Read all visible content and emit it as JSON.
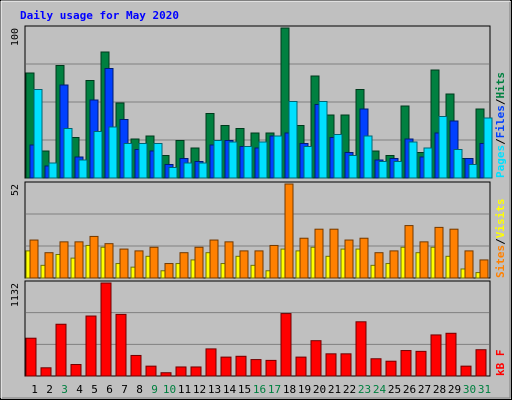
{
  "title": "Daily usage for May 2020",
  "colors": {
    "background": "#c0c0c0",
    "hits": "#008040",
    "files": "#0040ff",
    "pages": "#00e0ff",
    "visits": "#ffff00",
    "sites": "#ff8000",
    "kbytes": "#ff0000",
    "title": "#0000ff",
    "day_normal": "#000000",
    "day_weekend": "#008040"
  },
  "chart_data": [
    {
      "type": "bar",
      "panel": "hits-files-pages",
      "y_max_label": "100",
      "ylim": [
        0,
        100
      ],
      "legend": [
        {
          "label": "Pages",
          "color": "#00e0ff"
        },
        {
          "label": "/",
          "color": "#000000"
        },
        {
          "label": "Files",
          "color": "#0040ff"
        },
        {
          "label": "/",
          "color": "#000000"
        },
        {
          "label": "Hits",
          "color": "#008040"
        }
      ],
      "categories": [
        "1",
        "2",
        "3",
        "4",
        "5",
        "6",
        "7",
        "8",
        "9",
        "10",
        "11",
        "12",
        "13",
        "14",
        "15",
        "16",
        "17",
        "18",
        "19",
        "20",
        "21",
        "22",
        "23",
        "24",
        "25",
        "26",
        "27",
        "28",
        "29",
        "30",
        "31"
      ],
      "series": [
        {
          "name": "Hits",
          "values": [
            70,
            18,
            75,
            27,
            65,
            84,
            50,
            26,
            28,
            15,
            25,
            20,
            43,
            35,
            33,
            30,
            30,
            100,
            35,
            68,
            42,
            42,
            59,
            18,
            15,
            48,
            17,
            72,
            56,
            13,
            46
          ]
        },
        {
          "name": "Files",
          "values": [
            22,
            8,
            62,
            14,
            52,
            73,
            39,
            19,
            18,
            9,
            13,
            11,
            22,
            25,
            21,
            20,
            28,
            30,
            23,
            49,
            27,
            17,
            46,
            12,
            13,
            26,
            14,
            30,
            38,
            13,
            23
          ]
        },
        {
          "name": "Pages",
          "values": [
            59,
            10,
            33,
            12,
            31,
            34,
            23,
            23,
            23,
            7,
            10,
            10,
            25,
            24,
            21,
            24,
            28,
            51,
            21,
            51,
            29,
            15,
            28,
            11,
            11,
            24,
            20,
            41,
            19,
            9,
            40
          ]
        }
      ]
    },
    {
      "type": "bar",
      "panel": "visits-sites",
      "y_max_label": "52",
      "ylim": [
        0,
        52
      ],
      "legend": [
        {
          "label": "Sites",
          "color": "#ff8000"
        },
        {
          "label": "/",
          "color": "#000000"
        },
        {
          "label": "Visits",
          "color": "#ffff00"
        }
      ],
      "categories": [
        "1",
        "2",
        "3",
        "4",
        "5",
        "6",
        "7",
        "8",
        "9",
        "10",
        "11",
        "12",
        "13",
        "14",
        "15",
        "16",
        "17",
        "18",
        "19",
        "20",
        "21",
        "22",
        "23",
        "24",
        "25",
        "26",
        "27",
        "28",
        "29",
        "30",
        "31"
      ],
      "series": [
        {
          "name": "Visits",
          "values": [
            15,
            7,
            13,
            11,
            18,
            17,
            8,
            6,
            12,
            4,
            8,
            10,
            14,
            8,
            12,
            7,
            4,
            16,
            15,
            17,
            12,
            16,
            16,
            7,
            8,
            17,
            14,
            17,
            12,
            5,
            3
          ]
        },
        {
          "name": "Sites",
          "values": [
            21,
            14,
            20,
            20,
            23,
            19,
            16,
            15,
            17,
            8,
            14,
            17,
            21,
            20,
            15,
            15,
            18,
            52,
            22,
            27,
            27,
            21,
            22,
            14,
            15,
            29,
            20,
            28,
            27,
            15,
            10
          ]
        }
      ]
    },
    {
      "type": "bar",
      "panel": "kbytes",
      "y_max_label": "1132",
      "ylim": [
        0,
        1132
      ],
      "legend": [
        {
          "label": "kB F",
          "color": "#ff0000"
        }
      ],
      "categories": [
        "1",
        "2",
        "3",
        "4",
        "5",
        "6",
        "7",
        "8",
        "9",
        "10",
        "11",
        "12",
        "13",
        "14",
        "15",
        "16",
        "17",
        "18",
        "19",
        "20",
        "21",
        "22",
        "23",
        "24",
        "25",
        "26",
        "27",
        "28",
        "29",
        "30",
        "31"
      ],
      "series": [
        {
          "name": "kB F",
          "values": [
            460,
            100,
            630,
            140,
            730,
            1132,
            750,
            250,
            120,
            40,
            110,
            110,
            330,
            230,
            240,
            200,
            190,
            760,
            230,
            430,
            270,
            270,
            660,
            210,
            180,
            310,
            300,
            500,
            520,
            120,
            320
          ]
        }
      ]
    }
  ],
  "days": [
    {
      "label": "1",
      "weekend": false
    },
    {
      "label": "2",
      "weekend": false
    },
    {
      "label": "3",
      "weekend": true
    },
    {
      "label": "4",
      "weekend": false
    },
    {
      "label": "5",
      "weekend": false
    },
    {
      "label": "6",
      "weekend": false
    },
    {
      "label": "7",
      "weekend": false
    },
    {
      "label": "8",
      "weekend": false
    },
    {
      "label": "9",
      "weekend": true
    },
    {
      "label": "10",
      "weekend": true
    },
    {
      "label": "11",
      "weekend": false
    },
    {
      "label": "12",
      "weekend": false
    },
    {
      "label": "13",
      "weekend": false
    },
    {
      "label": "14",
      "weekend": false
    },
    {
      "label": "15",
      "weekend": false
    },
    {
      "label": "16",
      "weekend": true
    },
    {
      "label": "17",
      "weekend": true
    },
    {
      "label": "18",
      "weekend": false
    },
    {
      "label": "19",
      "weekend": false
    },
    {
      "label": "20",
      "weekend": false
    },
    {
      "label": "21",
      "weekend": false
    },
    {
      "label": "22",
      "weekend": false
    },
    {
      "label": "23",
      "weekend": true
    },
    {
      "label": "24",
      "weekend": true
    },
    {
      "label": "25",
      "weekend": false
    },
    {
      "label": "26",
      "weekend": false
    },
    {
      "label": "27",
      "weekend": false
    },
    {
      "label": "28",
      "weekend": false
    },
    {
      "label": "29",
      "weekend": false
    },
    {
      "label": "30",
      "weekend": true
    },
    {
      "label": "31",
      "weekend": true
    }
  ]
}
